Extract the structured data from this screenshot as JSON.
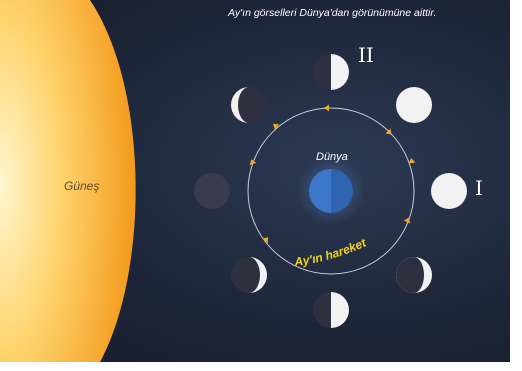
{
  "caption": "Ay'ın görselleri Dünya'dan görünümüne aittir.",
  "sun_label": "Güneş",
  "earth_label": "Dünya",
  "orbit_label": "Ay'ın hareketi",
  "markers": {
    "first": "I",
    "second": "II"
  },
  "colors": {
    "sun": "#f6a629",
    "background": "#1d2638",
    "earth": "#3c78c9",
    "orbit_arrows": "#f5a623",
    "orbit_label": "#f2d21a",
    "moon_lit": "#f2f2f2",
    "moon_dark": "#2e2f3f"
  },
  "moon_phases": [
    {
      "id": "full",
      "lit_fraction": 1.0,
      "marker": "I"
    },
    {
      "id": "waning-gibbous",
      "lit_fraction": 0.75
    },
    {
      "id": "third-quarter",
      "lit_fraction": 0.5,
      "marker": "II"
    },
    {
      "id": "waning-crescent",
      "lit_fraction": 0.25
    },
    {
      "id": "new",
      "lit_fraction": 0.0
    },
    {
      "id": "waxing-crescent",
      "lit_fraction": 0.25
    },
    {
      "id": "first-quarter",
      "lit_fraction": 0.5
    },
    {
      "id": "waxing-gibbous",
      "lit_fraction": 0.75
    }
  ]
}
